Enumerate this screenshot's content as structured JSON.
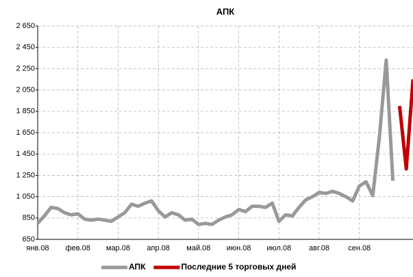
{
  "chart_data": {
    "type": "line",
    "title": "АПК",
    "categories": [
      "янв.08",
      null,
      null,
      null,
      null,
      null,
      "фев.08",
      null,
      null,
      null,
      null,
      null,
      "мар.08",
      null,
      null,
      null,
      null,
      null,
      "апр.08",
      null,
      null,
      null,
      null,
      null,
      "май.08",
      null,
      null,
      null,
      null,
      null,
      "июн.08",
      null,
      null,
      null,
      null,
      null,
      "июл.08",
      null,
      null,
      null,
      null,
      null,
      "авг.08",
      null,
      null,
      null,
      null,
      null,
      "сен.08",
      null,
      null,
      null,
      null,
      null,
      null,
      null,
      null
    ],
    "series": [
      {
        "name": "АПК",
        "color": "#999999",
        "values": [
          800,
          870,
          950,
          940,
          900,
          880,
          890,
          840,
          830,
          840,
          830,
          820,
          860,
          900,
          980,
          960,
          990,
          1010,
          920,
          860,
          900,
          880,
          830,
          840,
          790,
          800,
          790,
          830,
          860,
          880,
          930,
          910,
          960,
          960,
          950,
          990,
          820,
          880,
          870,
          950,
          1020,
          1050,
          1090,
          1080,
          1100,
          1080,
          1050,
          1010,
          1150,
          1190,
          1060,
          1620,
          2330,
          1200,
          null,
          null,
          null
        ]
      },
      {
        "name": "Последние 5 торговых дней",
        "color": "#c00000",
        "values": [
          null,
          null,
          null,
          null,
          null,
          null,
          null,
          null,
          null,
          null,
          null,
          null,
          null,
          null,
          null,
          null,
          null,
          null,
          null,
          null,
          null,
          null,
          null,
          null,
          null,
          null,
          null,
          null,
          null,
          null,
          null,
          null,
          null,
          null,
          null,
          null,
          null,
          null,
          null,
          null,
          null,
          null,
          null,
          null,
          null,
          null,
          null,
          null,
          null,
          null,
          null,
          null,
          null,
          null,
          1900,
          1310,
          2150
        ]
      }
    ],
    "ylim": [
      650,
      2650
    ],
    "yticks": [
      650,
      850,
      {
        "value": 1050,
        "label": "1 050"
      },
      {
        "value": 1250,
        "label": "1 250"
      },
      {
        "value": 1450,
        "label": "1 450"
      },
      {
        "value": 1650,
        "label": "1 650"
      },
      {
        "value": 1850,
        "label": "1 850"
      },
      {
        "value": 2050,
        "label": "2 050"
      },
      {
        "value": 2250,
        "label": "2 250"
      },
      {
        "value": 2450,
        "label": "2 450"
      },
      {
        "value": 2650,
        "label": "2 650"
      }
    ],
    "grid": true,
    "legend": "bottom"
  }
}
